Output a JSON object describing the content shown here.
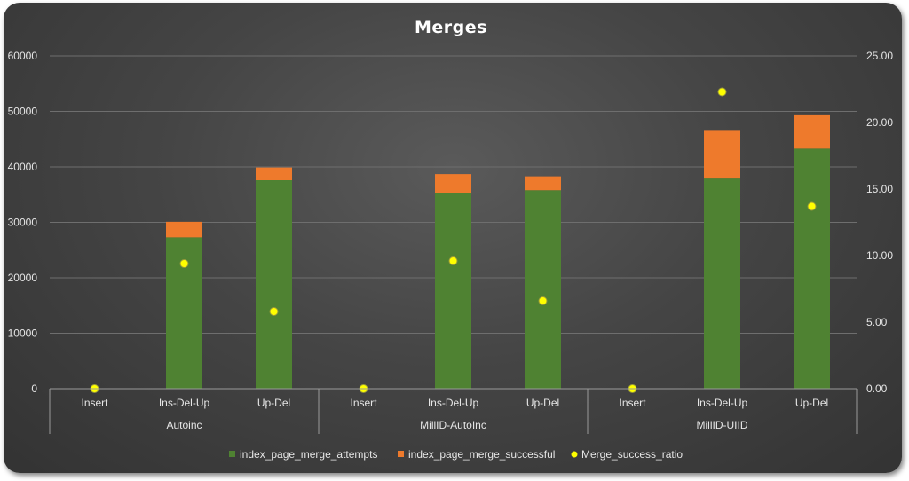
{
  "chart_data": {
    "type": "bar",
    "title": "Merges",
    "stacked": true,
    "groups": [
      {
        "label": "Autoinc",
        "categories": [
          "Insert",
          "Ins-Del-Up",
          "Up-Del"
        ]
      },
      {
        "label": "MillID-AutoInc",
        "categories": [
          "Insert",
          "Ins-Del-Up",
          "Up-Del"
        ]
      },
      {
        "label": "MillID-UIID",
        "categories": [
          "Insert",
          "Ins-Del-Up",
          "Up-Del"
        ]
      }
    ],
    "series": [
      {
        "name": "index_page_merge_attempts",
        "type": "bar",
        "axis": "left",
        "color": "#4f8232",
        "values": [
          0,
          27300,
          37600,
          0,
          35200,
          35800,
          0,
          37900,
          43300
        ]
      },
      {
        "name": "index_page_merge_successful",
        "type": "bar",
        "axis": "left",
        "color": "#ee7a2c",
        "values": [
          0,
          2800,
          2300,
          0,
          3500,
          2500,
          0,
          8600,
          6000
        ]
      },
      {
        "name": "Merge_success_ratio",
        "type": "scatter",
        "axis": "right",
        "color": "#ffff00",
        "values": [
          0,
          9.4,
          5.8,
          0,
          9.6,
          6.6,
          0,
          22.3,
          13.7
        ]
      }
    ],
    "y_left": {
      "min": 0,
      "max": 60000,
      "ticks": [
        "0",
        "10000",
        "20000",
        "30000",
        "40000",
        "50000",
        "60000"
      ]
    },
    "y_right": {
      "min": 0,
      "max": 25,
      "ticks": [
        "0.00",
        "5.00",
        "10.00",
        "15.00",
        "20.00",
        "25.00"
      ]
    },
    "grid": true,
    "legend_position": "bottom"
  }
}
